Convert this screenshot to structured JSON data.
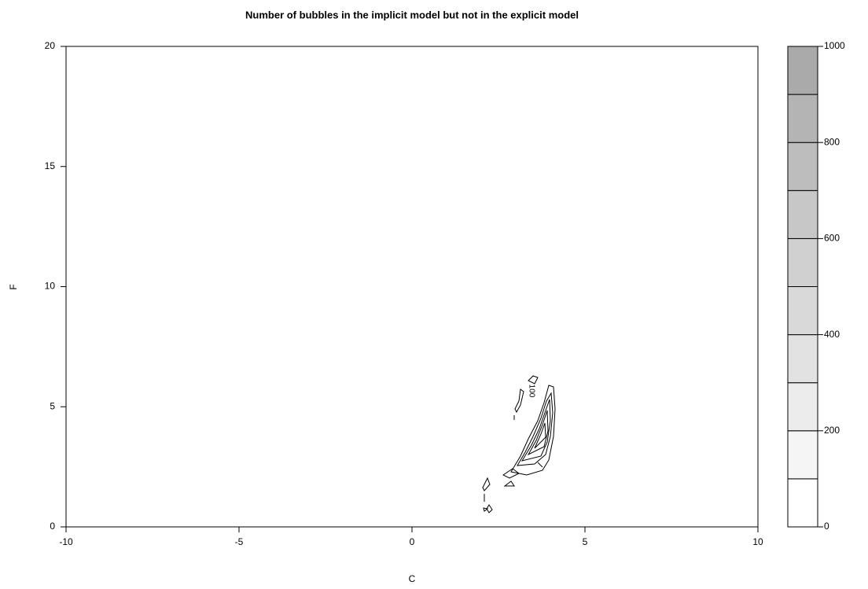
{
  "chart_data": {
    "type": "contour",
    "title": "Number of bubbles in the implicit model but not in the explicit model",
    "xlabel": "C",
    "ylabel": "F",
    "xlim": [
      -10,
      10
    ],
    "xticks": [
      -10,
      -5,
      0,
      5,
      10
    ],
    "ylim": [
      0,
      20
    ],
    "yticks": [
      0,
      5,
      10,
      15,
      20
    ],
    "levels": [
      0,
      100,
      200,
      300,
      400,
      500,
      600,
      700,
      800,
      900,
      1000
    ],
    "level_colors": [
      "#ffffff",
      "#f5f5f5",
      "#ececec",
      "#e2e2e2",
      "#d9d9d9",
      "#d0d0d0",
      "#c7c7c7",
      "#bdbdbd",
      "#b4b4b4",
      "#aaaaaa"
    ],
    "zlim": [
      0,
      1000
    ],
    "zticks": [
      0,
      200,
      400,
      600,
      800,
      1000
    ],
    "contour_labels": [
      100
    ]
  }
}
